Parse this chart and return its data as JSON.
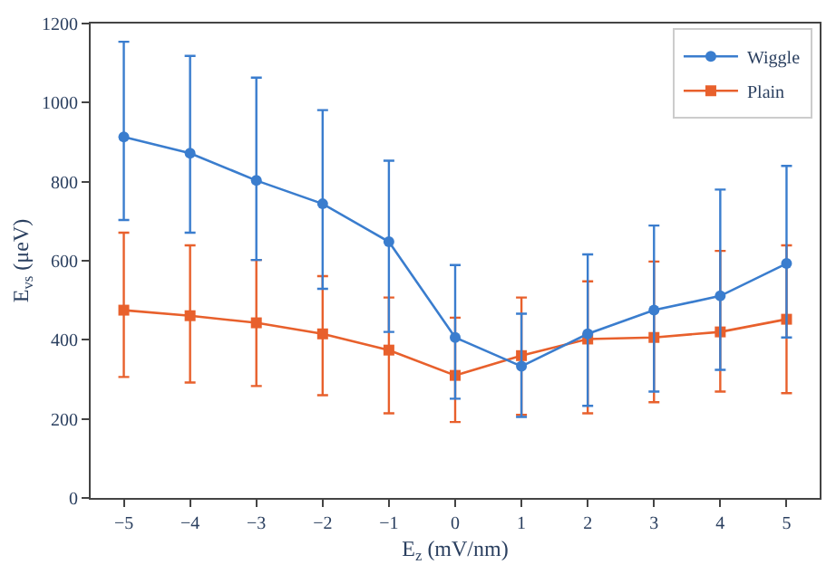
{
  "chart_data": {
    "type": "line",
    "xlabel": "E$_{z}$ (mV/nm)",
    "ylabel": "E$_{vs}$ (μeV)",
    "x": [
      -5,
      -4,
      -3,
      -2,
      -1,
      0,
      1,
      2,
      3,
      4,
      5
    ],
    "series": [
      {
        "name": "Wiggle",
        "color": "#3a7dce",
        "marker": "circle",
        "values": [
          913,
          872,
          803,
          744,
          648,
          406,
          333,
          415,
          475,
          511,
          593
        ],
        "errors": [
          [
            703,
            1154
          ],
          [
            671,
            1118
          ],
          [
            602,
            1063
          ],
          [
            529,
            981
          ],
          [
            420,
            853
          ],
          [
            251,
            589
          ],
          [
            205,
            466
          ],
          [
            233,
            616
          ],
          [
            269,
            689
          ],
          [
            324,
            780
          ],
          [
            406,
            840
          ]
        ]
      },
      {
        "name": "Plain",
        "color": "#e8602c",
        "marker": "square",
        "values": [
          475,
          461,
          443,
          415,
          374,
          310,
          360,
          402,
          406,
          420,
          452
        ],
        "errors": [
          [
            306,
            671
          ],
          [
            292,
            639
          ],
          [
            283,
            602
          ],
          [
            260,
            561
          ],
          [
            214,
            507
          ],
          [
            192,
            456
          ],
          [
            210,
            507
          ],
          [
            214,
            548
          ],
          [
            242,
            598
          ],
          [
            269,
            625
          ],
          [
            265,
            639
          ]
        ]
      }
    ],
    "xlim": [
      -5.5,
      5.5
    ],
    "xticks": [
      {
        "value": -5,
        "label": "−5"
      },
      {
        "value": -4,
        "label": "−4"
      },
      {
        "value": -3,
        "label": "−3"
      },
      {
        "value": -2,
        "label": "−2"
      },
      {
        "value": -1,
        "label": "−1"
      },
      0,
      1,
      2,
      3,
      4,
      5
    ],
    "ylim": [
      0,
      1200
    ],
    "yticks": [
      0,
      200,
      400,
      600,
      800,
      1000,
      1200
    ],
    "legend": "top right",
    "line_style": "solid"
  }
}
